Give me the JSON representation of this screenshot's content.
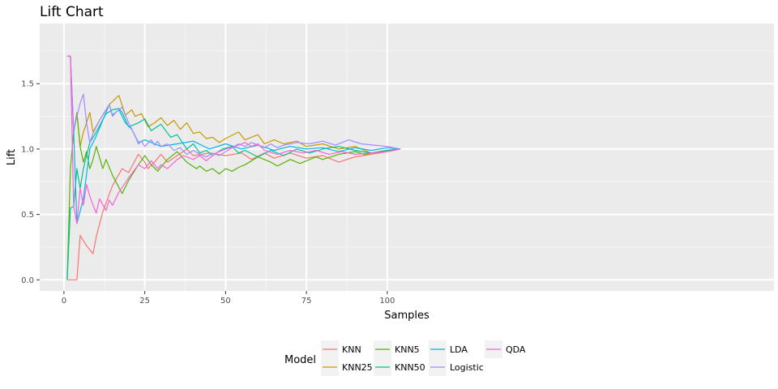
{
  "chart_data": {
    "type": "line",
    "title": "Lift Chart",
    "xlabel": "Samples",
    "ylabel": "Lift",
    "xlim": [
      -7.5,
      219.6
    ],
    "ylim": [
      -0.085,
      1.96
    ],
    "x_ticks": [
      0,
      25,
      50,
      75,
      100
    ],
    "y_ticks": [
      0.0,
      0.5,
      1.0,
      1.5
    ],
    "x_tick_labels": [
      "0",
      "25",
      "50",
      "75",
      "100"
    ],
    "y_tick_labels": [
      "0.0",
      "0.5",
      "1.0",
      "1.5"
    ],
    "grid": true,
    "legend": {
      "title": "Model",
      "position": "bottom"
    },
    "series": [
      {
        "name": "KNN",
        "color": "#F8766D",
        "points": [
          [
            1,
            0
          ],
          [
            2,
            0
          ],
          [
            3,
            0
          ],
          [
            4,
            0
          ],
          [
            5,
            0.34
          ],
          [
            6,
            0.3
          ],
          [
            7,
            0.26
          ],
          [
            8,
            0.23
          ],
          [
            9,
            0.2
          ],
          [
            10,
            0.33
          ],
          [
            12,
            0.52
          ],
          [
            15,
            0.72
          ],
          [
            18,
            0.85
          ],
          [
            20,
            0.82
          ],
          [
            23,
            0.96
          ],
          [
            25,
            0.9
          ],
          [
            26,
            0.85
          ],
          [
            28,
            0.9
          ],
          [
            30,
            0.96
          ],
          [
            32,
            0.9
          ],
          [
            35,
            0.95
          ],
          [
            38,
            1.0
          ],
          [
            40,
            0.95
          ],
          [
            45,
            0.97
          ],
          [
            50,
            0.95
          ],
          [
            55,
            0.97
          ],
          [
            58,
            0.92
          ],
          [
            62,
            0.97
          ],
          [
            65,
            0.93
          ],
          [
            70,
            0.97
          ],
          [
            75,
            0.93
          ],
          [
            80,
            0.95
          ],
          [
            85,
            0.9
          ],
          [
            90,
            0.94
          ],
          [
            95,
            0.96
          ],
          [
            100,
            0.98
          ],
          [
            104,
            1.0
          ]
        ]
      },
      {
        "name": "KNN25",
        "color": "#C49A00",
        "points": [
          [
            1,
            1.71
          ],
          [
            2,
            1.71
          ],
          [
            3,
            1.13
          ],
          [
            4,
            1.28
          ],
          [
            5,
            1.02
          ],
          [
            6,
            1.13
          ],
          [
            7,
            1.2
          ],
          [
            8,
            1.28
          ],
          [
            9,
            1.13
          ],
          [
            11,
            1.22
          ],
          [
            14,
            1.34
          ],
          [
            17,
            1.41
          ],
          [
            19,
            1.26
          ],
          [
            21,
            1.3
          ],
          [
            22,
            1.25
          ],
          [
            24,
            1.27
          ],
          [
            26,
            1.17
          ],
          [
            28,
            1.2
          ],
          [
            30,
            1.24
          ],
          [
            32,
            1.18
          ],
          [
            34,
            1.22
          ],
          [
            36,
            1.15
          ],
          [
            38,
            1.2
          ],
          [
            40,
            1.12
          ],
          [
            42,
            1.13
          ],
          [
            44,
            1.08
          ],
          [
            46,
            1.09
          ],
          [
            48,
            1.05
          ],
          [
            50,
            1.08
          ],
          [
            54,
            1.13
          ],
          [
            56,
            1.07
          ],
          [
            60,
            1.11
          ],
          [
            62,
            1.04
          ],
          [
            65,
            1.07
          ],
          [
            68,
            1.04
          ],
          [
            72,
            1.06
          ],
          [
            75,
            1.02
          ],
          [
            80,
            1.04
          ],
          [
            85,
            1.0
          ],
          [
            90,
            1.02
          ],
          [
            95,
            0.97
          ],
          [
            100,
            0.99
          ],
          [
            104,
            1.0
          ]
        ]
      },
      {
        "name": "KNN5",
        "color": "#53B400",
        "points": [
          [
            1,
            0
          ],
          [
            2,
            0.85
          ],
          [
            3,
            1.13
          ],
          [
            4,
            1.27
          ],
          [
            5,
            1.02
          ],
          [
            6,
            0.9
          ],
          [
            7,
            0.98
          ],
          [
            8,
            0.85
          ],
          [
            9,
            0.92
          ],
          [
            10,
            1.02
          ],
          [
            12,
            0.85
          ],
          [
            13,
            0.92
          ],
          [
            15,
            0.8
          ],
          [
            18,
            0.66
          ],
          [
            20,
            0.76
          ],
          [
            23,
            0.88
          ],
          [
            25,
            0.95
          ],
          [
            27,
            0.88
          ],
          [
            29,
            0.83
          ],
          [
            32,
            0.92
          ],
          [
            35,
            0.98
          ],
          [
            38,
            0.9
          ],
          [
            41,
            0.85
          ],
          [
            42,
            0.87
          ],
          [
            44,
            0.83
          ],
          [
            46,
            0.85
          ],
          [
            48,
            0.81
          ],
          [
            50,
            0.85
          ],
          [
            52,
            0.83
          ],
          [
            54,
            0.86
          ],
          [
            56,
            0.88
          ],
          [
            60,
            0.94
          ],
          [
            64,
            0.9
          ],
          [
            66,
            0.87
          ],
          [
            70,
            0.92
          ],
          [
            73,
            0.89
          ],
          [
            78,
            0.94
          ],
          [
            80,
            0.92
          ],
          [
            85,
            0.96
          ],
          [
            90,
            0.98
          ],
          [
            93,
            0.96
          ],
          [
            100,
            0.99
          ],
          [
            104,
            1.0
          ]
        ]
      },
      {
        "name": "KNN50",
        "color": "#00C094",
        "points": [
          [
            1,
            0
          ],
          [
            2,
            0.55
          ],
          [
            3,
            0.56
          ],
          [
            4,
            0.85
          ],
          [
            5,
            0.7
          ],
          [
            6,
            0.85
          ],
          [
            7,
            0.95
          ],
          [
            8,
            1.05
          ],
          [
            10,
            1.13
          ],
          [
            13,
            1.27
          ],
          [
            15,
            1.3
          ],
          [
            17,
            1.31
          ],
          [
            18,
            1.28
          ],
          [
            20,
            1.17
          ],
          [
            21,
            1.18
          ],
          [
            23,
            1.2
          ],
          [
            25,
            1.23
          ],
          [
            27,
            1.14
          ],
          [
            30,
            1.19
          ],
          [
            33,
            1.09
          ],
          [
            35,
            1.11
          ],
          [
            38,
            1.0
          ],
          [
            40,
            1.04
          ],
          [
            42,
            0.97
          ],
          [
            44,
            0.99
          ],
          [
            46,
            0.95
          ],
          [
            49,
            1.0
          ],
          [
            52,
            1.02
          ],
          [
            54,
            0.97
          ],
          [
            56,
            0.99
          ],
          [
            60,
            0.94
          ],
          [
            64,
            0.99
          ],
          [
            68,
            0.95
          ],
          [
            72,
            1.0
          ],
          [
            76,
            0.97
          ],
          [
            80,
            1.0
          ],
          [
            85,
            1.02
          ],
          [
            90,
            0.99
          ],
          [
            95,
            0.97
          ],
          [
            100,
            0.99
          ],
          [
            104,
            1.0
          ]
        ]
      },
      {
        "name": "LDA",
        "color": "#00B6EB",
        "points": [
          [
            1,
            1.71
          ],
          [
            2,
            1.71
          ],
          [
            3,
            1.13
          ],
          [
            4,
            0.43
          ],
          [
            6,
            0.62
          ],
          [
            8,
            1.0
          ],
          [
            10,
            1.1
          ],
          [
            12,
            1.22
          ],
          [
            14,
            1.34
          ],
          [
            15,
            1.26
          ],
          [
            17,
            1.3
          ],
          [
            19,
            1.2
          ],
          [
            21,
            1.15
          ],
          [
            23,
            1.05
          ],
          [
            25,
            1.07
          ],
          [
            30,
            1.02
          ],
          [
            35,
            1.04
          ],
          [
            40,
            1.06
          ],
          [
            45,
            1.0
          ],
          [
            50,
            1.04
          ],
          [
            55,
            1.0
          ],
          [
            60,
            1.03
          ],
          [
            65,
            0.99
          ],
          [
            70,
            1.02
          ],
          [
            75,
            1.0
          ],
          [
            80,
            1.01
          ],
          [
            85,
            0.98
          ],
          [
            90,
            1.01
          ],
          [
            95,
            0.99
          ],
          [
            100,
            1.01
          ],
          [
            104,
            1.0
          ]
        ]
      },
      {
        "name": "Logistic",
        "color": "#A58AFF",
        "points": [
          [
            1,
            1.71
          ],
          [
            2,
            1.71
          ],
          [
            3,
            1.14
          ],
          [
            4,
            1.25
          ],
          [
            5,
            1.35
          ],
          [
            6,
            1.42
          ],
          [
            7,
            1.2
          ],
          [
            8,
            1.05
          ],
          [
            9,
            1.12
          ],
          [
            11,
            1.22
          ],
          [
            14,
            1.34
          ],
          [
            15,
            1.25
          ],
          [
            16,
            1.28
          ],
          [
            18,
            1.32
          ],
          [
            20,
            1.2
          ],
          [
            22,
            1.1
          ],
          [
            23,
            1.04
          ],
          [
            24,
            1.06
          ],
          [
            25,
            1.02
          ],
          [
            27,
            1.07
          ],
          [
            28,
            1.03
          ],
          [
            29,
            1.06
          ],
          [
            30,
            1.02
          ],
          [
            32,
            1.04
          ],
          [
            34,
            0.99
          ],
          [
            36,
            1.01
          ],
          [
            38,
            0.96
          ],
          [
            40,
            0.99
          ],
          [
            42,
            0.96
          ],
          [
            44,
            0.94
          ],
          [
            46,
            0.97
          ],
          [
            48,
            0.95
          ],
          [
            50,
            0.98
          ],
          [
            52,
            1.01
          ],
          [
            54,
            1.04
          ],
          [
            56,
            1.02
          ],
          [
            58,
            1.05
          ],
          [
            60,
            1.03
          ],
          [
            62,
            1.01
          ],
          [
            64,
            1.04
          ],
          [
            66,
            1.01
          ],
          [
            68,
            1.03
          ],
          [
            72,
            1.05
          ],
          [
            76,
            1.04
          ],
          [
            80,
            1.06
          ],
          [
            84,
            1.03
          ],
          [
            88,
            1.07
          ],
          [
            92,
            1.04
          ],
          [
            96,
            1.03
          ],
          [
            100,
            1.02
          ],
          [
            104,
            1.0
          ]
        ]
      },
      {
        "name": "QDA",
        "color": "#FB61D7",
        "points": [
          [
            1,
            1.71
          ],
          [
            2,
            1.71
          ],
          [
            3,
            0.56
          ],
          [
            4,
            0.43
          ],
          [
            5,
            0.7
          ],
          [
            6,
            0.57
          ],
          [
            7,
            0.73
          ],
          [
            8,
            0.64
          ],
          [
            9,
            0.57
          ],
          [
            10,
            0.51
          ],
          [
            11,
            0.62
          ],
          [
            13,
            0.53
          ],
          [
            14,
            0.61
          ],
          [
            15,
            0.57
          ],
          [
            17,
            0.67
          ],
          [
            20,
            0.78
          ],
          [
            23,
            0.88
          ],
          [
            25,
            0.85
          ],
          [
            27,
            0.91
          ],
          [
            29,
            0.85
          ],
          [
            30,
            0.88
          ],
          [
            32,
            0.85
          ],
          [
            35,
            0.92
          ],
          [
            37,
            0.95
          ],
          [
            40,
            0.92
          ],
          [
            42,
            0.95
          ],
          [
            44,
            0.91
          ],
          [
            47,
            0.97
          ],
          [
            50,
            1.0
          ],
          [
            54,
            1.03
          ],
          [
            56,
            1.05
          ],
          [
            58,
            1.02
          ],
          [
            60,
            1.04
          ],
          [
            62,
            0.99
          ],
          [
            66,
            0.96
          ],
          [
            70,
            0.99
          ],
          [
            74,
            0.97
          ],
          [
            78,
            0.99
          ],
          [
            82,
            0.96
          ],
          [
            86,
            0.98
          ],
          [
            90,
            0.96
          ],
          [
            95,
            0.97
          ],
          [
            100,
            0.98
          ],
          [
            104,
            1.0
          ]
        ]
      }
    ]
  }
}
